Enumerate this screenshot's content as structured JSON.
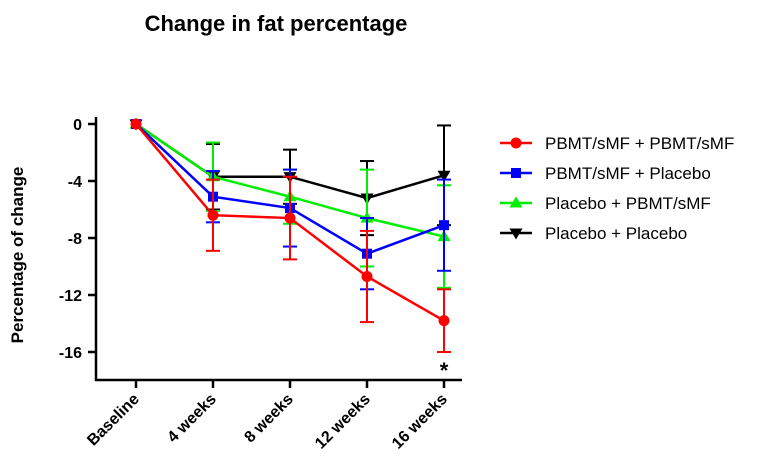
{
  "chart_data": {
    "type": "line",
    "title": "Change in fat percentage",
    "ylabel": "Percentage of  change",
    "xlabel": "",
    "categories": [
      "Baseline",
      "4 weeks",
      "8 weeks",
      "12 weeks",
      "16 weeks"
    ],
    "ylim": [
      -18,
      0
    ],
    "yticks": [
      0,
      -4,
      -8,
      -12,
      -16
    ],
    "ytick_labels": [
      "0",
      "-4",
      "-8",
      "-12",
      "-16"
    ],
    "grid": false,
    "legend_position": "right",
    "series": [
      {
        "name": "PBMT/sMF + PBMT/sMF",
        "color": "#ff0000",
        "marker": "circle",
        "values": [
          0,
          -6.4,
          -6.6,
          -10.7,
          -13.8
        ],
        "error": [
          0,
          2.5,
          2.9,
          3.2,
          2.2
        ]
      },
      {
        "name": "PBMT/sMF + Placebo",
        "color": "#0000ff",
        "marker": "square",
        "values": [
          0,
          -5.1,
          -5.9,
          -9.1,
          -7.1
        ],
        "error": [
          0,
          1.8,
          2.7,
          2.5,
          3.2
        ]
      },
      {
        "name": "Placebo + PBMT/sMF",
        "color": "#00ee00",
        "marker": "triangle-up",
        "values": [
          0,
          -3.7,
          -5.1,
          -6.6,
          -7.9
        ],
        "error": [
          0,
          2.4,
          1.9,
          3.4,
          3.6
        ]
      },
      {
        "name": "Placebo + Placebo",
        "color": "#000000",
        "marker": "triangle-down",
        "values": [
          0,
          -3.7,
          -3.7,
          -5.2,
          -3.6
        ],
        "error": [
          0,
          2.3,
          1.9,
          2.6,
          3.5
        ]
      }
    ],
    "annotations": [
      {
        "text": "*",
        "category": "16 weeks"
      }
    ]
  }
}
